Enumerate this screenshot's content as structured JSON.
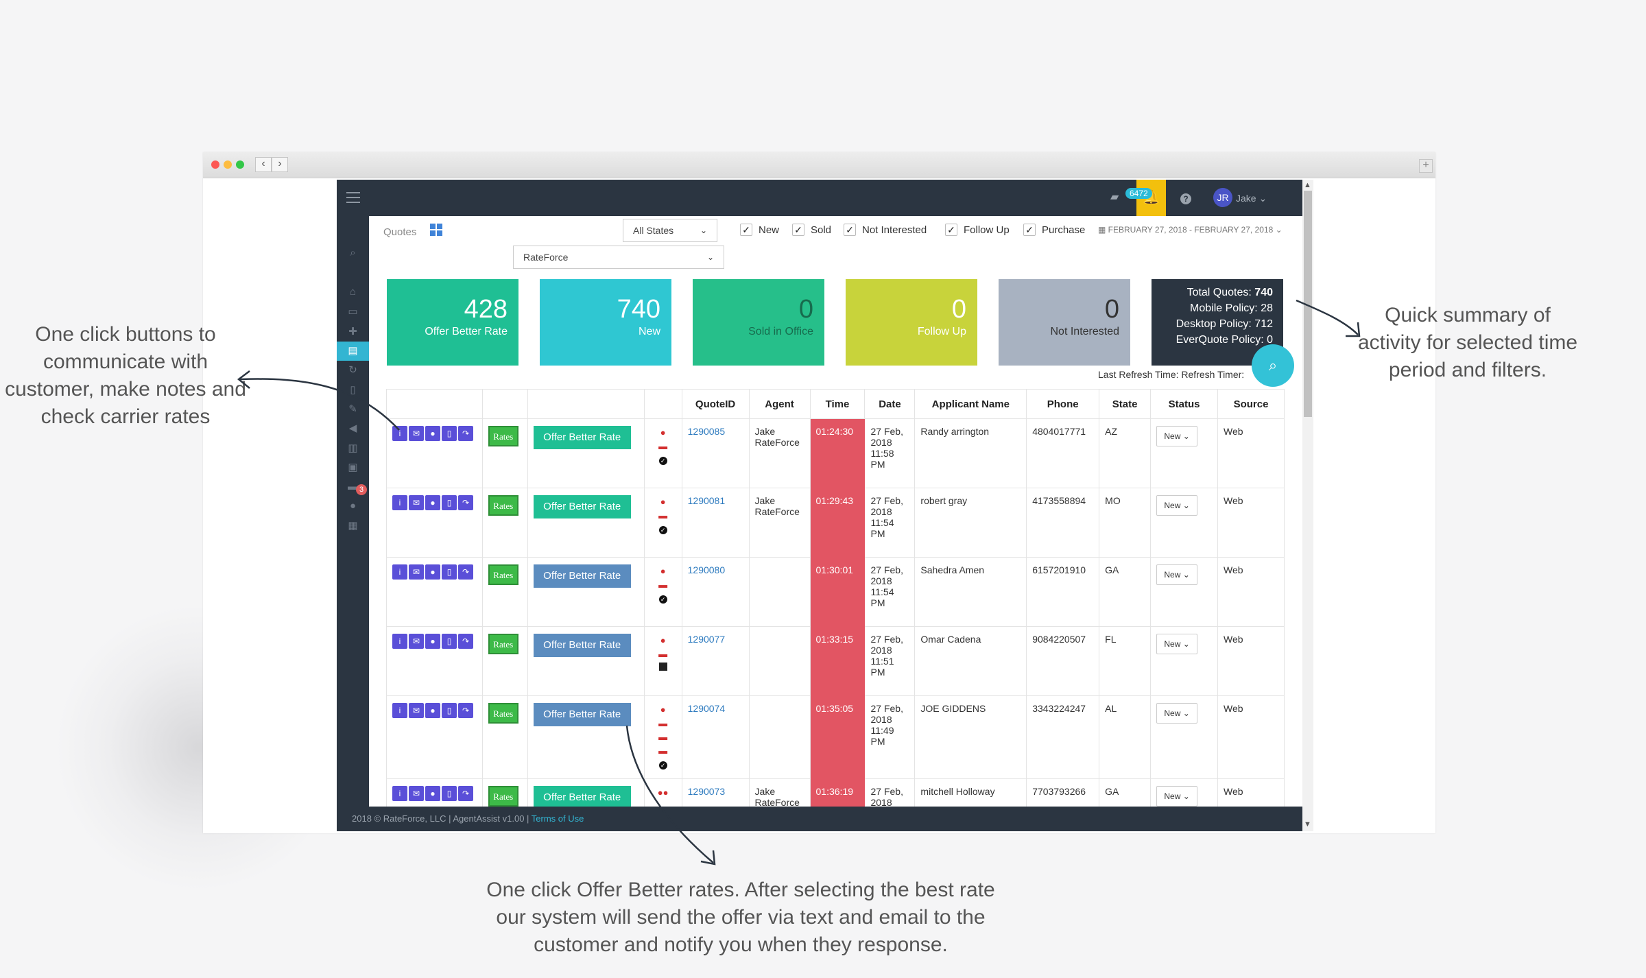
{
  "topbar": {
    "notification_count": "6472",
    "user_initials": "JR",
    "user_name": "Jake"
  },
  "filters": {
    "quotes_label": "Quotes",
    "state_select": "All States",
    "agency_select": "RateForce",
    "checkboxes": [
      "New",
      "Sold",
      "Not Interested",
      "Follow Up",
      "Purchase"
    ],
    "date_range": "FEBRUARY 27, 2018 - FEBRUARY 27, 2018"
  },
  "cards": [
    {
      "value": "428",
      "label": "Offer Better Rate",
      "color": "#1fbf94"
    },
    {
      "value": "740",
      "label": "New",
      "color": "#2fc7d2"
    },
    {
      "value": "0",
      "label": "Sold in Office",
      "color": "#26bf8a"
    },
    {
      "value": "0",
      "label": "Follow Up",
      "color": "#c8d33b"
    },
    {
      "value": "0",
      "label": "Not Interested",
      "color": "#a8b2c1"
    }
  ],
  "summary": {
    "total_label": "Total Quotes:",
    "total_value": "740",
    "mobile": "Mobile Policy: 28",
    "desktop": "Desktop Policy: 712",
    "everquote": "EverQuote Policy: 0"
  },
  "refresh_text": "Last Refresh Time: Refresh Timer:",
  "side_badge": "3",
  "table": {
    "headers": [
      "",
      "",
      "",
      "",
      "QuoteID",
      "Agent",
      "Time",
      "Date",
      "Applicant Name",
      "Phone",
      "State",
      "Status",
      "Source"
    ],
    "rows": [
      {
        "rates": "Rates",
        "offer": "Offer Better Rate",
        "quote_id": "1290085",
        "agent": "Jake RateForce",
        "time": "01:24:30",
        "date": "27 Feb, 2018 11:58 PM",
        "name": "Randy arrington",
        "phone": "4804017771",
        "state": "AZ",
        "status": "New",
        "source": "Web"
      },
      {
        "rates": "Rates",
        "offer": "Offer Better Rate",
        "quote_id": "1290081",
        "agent": "Jake RateForce",
        "time": "01:29:43",
        "date": "27 Feb, 2018 11:54 PM",
        "name": "robert gray",
        "phone": "4173558894",
        "state": "MO",
        "status": "New",
        "source": "Web"
      },
      {
        "rates": "Rates",
        "offer": "Offer Better Rate",
        "quote_id": "1290080",
        "agent": "",
        "time": "01:30:01",
        "date": "27 Feb, 2018 11:54 PM",
        "name": "Sahedra Amen",
        "phone": "6157201910",
        "state": "GA",
        "status": "New",
        "source": "Web"
      },
      {
        "rates": "Rates",
        "offer": "Offer Better Rate",
        "quote_id": "1290077",
        "agent": "",
        "time": "01:33:15",
        "date": "27 Feb, 2018 11:51 PM",
        "name": "Omar Cadena",
        "phone": "9084220507",
        "state": "FL",
        "status": "New",
        "source": "Web"
      },
      {
        "rates": "Rates",
        "offer": "Offer Better Rate",
        "quote_id": "1290074",
        "agent": "",
        "time": "01:35:05",
        "date": "27 Feb, 2018 11:49 PM",
        "name": "JOE GIDDENS",
        "phone": "3343224247",
        "state": "AL",
        "status": "New",
        "source": "Web"
      },
      {
        "rates": "Rates",
        "offer": "Offer Better Rate",
        "quote_id": "1290073",
        "agent": "Jake RateForce",
        "time": "01:36:19",
        "date": "27 Feb, 2018",
        "name": "mitchell Holloway",
        "phone": "7703793266",
        "state": "GA",
        "status": "New",
        "source": "Web"
      }
    ]
  },
  "footer": {
    "text": "2018 © RateForce, LLC | AgentAssist v1.00 | ",
    "link": "Terms of Use"
  },
  "annotations": {
    "left": "One click buttons to communicate with customer, make notes and check carrier rates",
    "right": "Quick summary of activity for selected time period and filters.",
    "bottom": "One click Offer Better rates.  After selecting the best rate our system will send the offer via text and email to the customer and notify you when they response."
  }
}
